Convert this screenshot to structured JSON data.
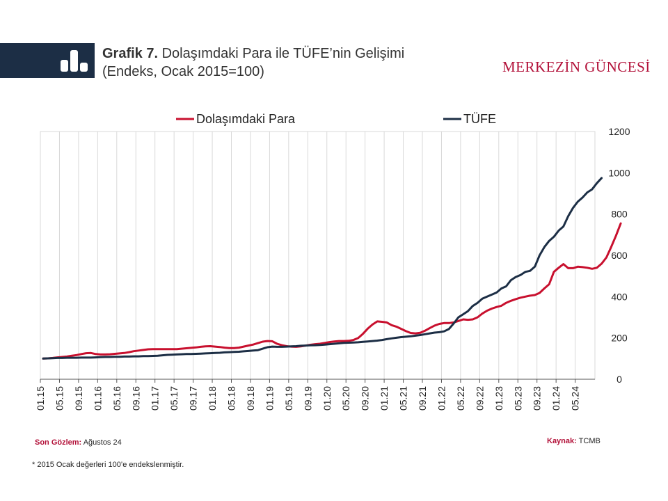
{
  "header": {
    "title_bold": "Grafik 7.",
    "title_rest": "Dolaşımdaki Para ile TÜFE’nin Gelişimi",
    "subtitle": "(Endeks, Ocak 2015=100)",
    "brand": "MERKEZİN GÜNCESİ",
    "brand_color": "#b3123a",
    "bar_color": "#1c2e45",
    "logo_icon": "bar-chart-icon"
  },
  "footer": {
    "last_obs_label": "Son Gözlem:",
    "last_obs_value": "Ağustos 24",
    "source_label": "Kaynak:",
    "source_value": "TCMB",
    "note": "* 2015 Ocak değerleri 100’e endekslenmiştir."
  },
  "chart_data": {
    "type": "line",
    "title": "",
    "xlabel": "",
    "ylabel": "",
    "ylim": [
      0,
      1200
    ],
    "yticks": [
      0,
      200,
      400,
      600,
      800,
      1000,
      1200
    ],
    "y_axis_side": "right",
    "grid": "vertical",
    "legend_position": "top",
    "x_tick_labels": [
      "01.15",
      "05.15",
      "09.15",
      "01.16",
      "05.16",
      "09.16",
      "01.17",
      "05.17",
      "09.17",
      "01.18",
      "05.18",
      "09.18",
      "01.19",
      "05.19",
      "09.19",
      "01.20",
      "05.20",
      "09.20",
      "01.21",
      "05.21",
      "09.21",
      "01.22",
      "05.22",
      "09.22",
      "01.23",
      "05.23",
      "09.23",
      "01.24",
      "05.24"
    ],
    "x_start": "2015-01",
    "x_end": "2024-08",
    "series": [
      {
        "name": "Dolaşımdaki Para",
        "color": "#c8102e",
        "values": [
          100,
          101,
          103,
          106,
          108,
          110,
          114,
          117,
          122,
          126,
          127,
          122,
          120,
          120,
          121,
          123,
          125,
          127,
          131,
          136,
          139,
          142,
          145,
          146,
          146,
          146,
          146,
          146,
          146,
          148,
          150,
          152,
          154,
          157,
          159,
          160,
          158,
          156,
          153,
          151,
          151,
          153,
          158,
          163,
          168,
          175,
          182,
          185,
          184,
          172,
          165,
          160,
          158,
          157,
          159,
          163,
          167,
          170,
          172,
          176,
          180,
          183,
          185,
          185,
          186,
          190,
          200,
          220,
          245,
          265,
          280,
          278,
          275,
          262,
          255,
          244,
          233,
          224,
          222,
          225,
          235,
          248,
          260,
          268,
          272,
          272,
          275,
          282,
          290,
          288,
          290,
          300,
          318,
          332,
          342,
          350,
          356,
          370,
          380,
          388,
          395,
          400,
          405,
          408,
          418,
          440,
          460,
          520,
          540,
          558,
          538,
          538,
          545,
          543,
          540,
          535,
          540,
          560,
          590,
          640,
          695,
          755
        ]
      },
      {
        "name": "TÜFE",
        "color": "#1c2e45",
        "values": [
          100,
          101,
          102,
          103,
          103,
          104,
          104,
          104,
          105,
          105,
          105,
          106,
          107,
          108,
          108,
          109,
          109,
          110,
          110,
          111,
          111,
          112,
          112,
          113,
          114,
          116,
          118,
          119,
          120,
          121,
          122,
          122,
          123,
          124,
          125,
          126,
          127,
          128,
          130,
          131,
          132,
          133,
          135,
          137,
          139,
          141,
          148,
          155,
          158,
          157,
          157,
          158,
          159,
          160,
          162,
          163,
          164,
          165,
          166,
          168,
          170,
          172,
          174,
          176,
          177,
          178,
          179,
          181,
          183,
          185,
          187,
          190,
          194,
          198,
          201,
          204,
          206,
          208,
          211,
          214,
          218,
          222,
          226,
          228,
          232,
          243,
          270,
          300,
          315,
          330,
          355,
          370,
          390,
          400,
          410,
          420,
          440,
          450,
          480,
          495,
          505,
          520,
          525,
          545,
          600,
          640,
          670,
          690,
          720,
          740,
          790,
          830,
          860,
          880,
          905,
          920,
          950,
          975
        ]
      }
    ]
  }
}
